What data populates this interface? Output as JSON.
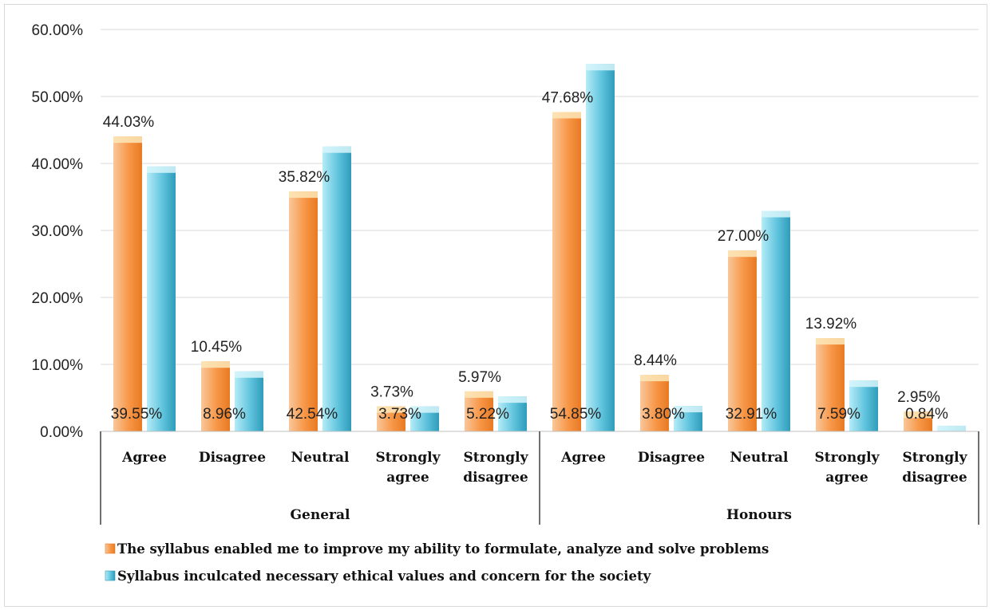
{
  "chart_data": {
    "type": "bar",
    "groups": [
      {
        "name": "General",
        "categories": [
          [
            "Agree"
          ],
          [
            "Disagree"
          ],
          [
            "Neutral"
          ],
          [
            "Strongly",
            "agree"
          ],
          [
            "Strongly",
            "disagree"
          ]
        ]
      },
      {
        "name": "Honours",
        "categories": [
          [
            "Agree"
          ],
          [
            "Disagree"
          ],
          [
            "Neutral"
          ],
          [
            "Strongly",
            "agree"
          ],
          [
            "Strongly",
            "disagree"
          ]
        ]
      }
    ],
    "series": [
      {
        "name": "The syllabus enabled me to improve my ability to formulate, analyze and solve problems",
        "color": "#f79646",
        "values": [
          44.03,
          10.45,
          35.82,
          3.73,
          5.97,
          47.68,
          8.44,
          27.0,
          13.92,
          2.95
        ],
        "labels": [
          "44.03%",
          "10.45%",
          "35.82%",
          "3.73%",
          "5.97%",
          "47.68%",
          "8.44%",
          "27.00%",
          "13.92%",
          "2.95%"
        ]
      },
      {
        "name": "Syllabus inculcated necessary ethical values and concern for the society",
        "color": "#4bacc6",
        "values": [
          39.55,
          8.96,
          42.54,
          3.73,
          5.22,
          54.85,
          3.8,
          32.91,
          7.59,
          0.84
        ],
        "labels": [
          "39.55%",
          "8.96%",
          "42.54%",
          "3.73%",
          "5.22%",
          "54.85%",
          "3.80%",
          "32.91%",
          "7.59%",
          "0.84%"
        ]
      }
    ],
    "y_ticks": [
      "0.00%",
      "10.00%",
      "20.00%",
      "30.00%",
      "40.00%",
      "50.00%",
      "60.00%"
    ],
    "ylim": [
      0,
      60
    ],
    "grid": true,
    "legend_position": "bottom"
  }
}
